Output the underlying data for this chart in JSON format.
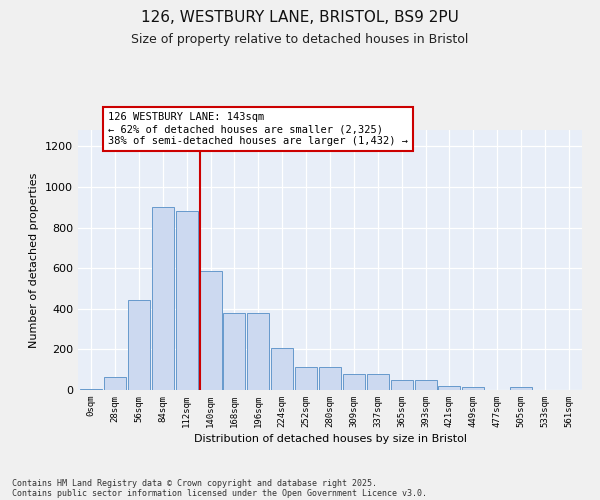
{
  "title_line1": "126, WESTBURY LANE, BRISTOL, BS9 2PU",
  "title_line2": "Size of property relative to detached houses in Bristol",
  "xlabel": "Distribution of detached houses by size in Bristol",
  "ylabel": "Number of detached properties",
  "bar_labels": [
    "0sqm",
    "28sqm",
    "56sqm",
    "84sqm",
    "112sqm",
    "140sqm",
    "168sqm",
    "196sqm",
    "224sqm",
    "252sqm",
    "280sqm",
    "309sqm",
    "337sqm",
    "365sqm",
    "393sqm",
    "421sqm",
    "449sqm",
    "477sqm",
    "505sqm",
    "533sqm",
    "561sqm"
  ],
  "bar_values": [
    5,
    65,
    445,
    900,
    880,
    585,
    380,
    378,
    205,
    115,
    115,
    80,
    80,
    50,
    50,
    20,
    14,
    2,
    14,
    2,
    2
  ],
  "bar_color": "#ccd9f0",
  "bar_edge_color": "#6699cc",
  "bg_color": "#e8eef8",
  "grid_color": "#ffffff",
  "vline_color": "#cc0000",
  "vline_index": 5,
  "annotation_text": "126 WESTBURY LANE: 143sqm\n← 62% of detached houses are smaller (2,325)\n38% of semi-detached houses are larger (1,432) →",
  "annotation_box_facecolor": "#ffffff",
  "annotation_box_edgecolor": "#cc0000",
  "ylim": [
    0,
    1280
  ],
  "yticks": [
    0,
    200,
    400,
    600,
    800,
    1000,
    1200
  ],
  "footnote_line1": "Contains HM Land Registry data © Crown copyright and database right 2025.",
  "footnote_line2": "Contains public sector information licensed under the Open Government Licence v3.0."
}
